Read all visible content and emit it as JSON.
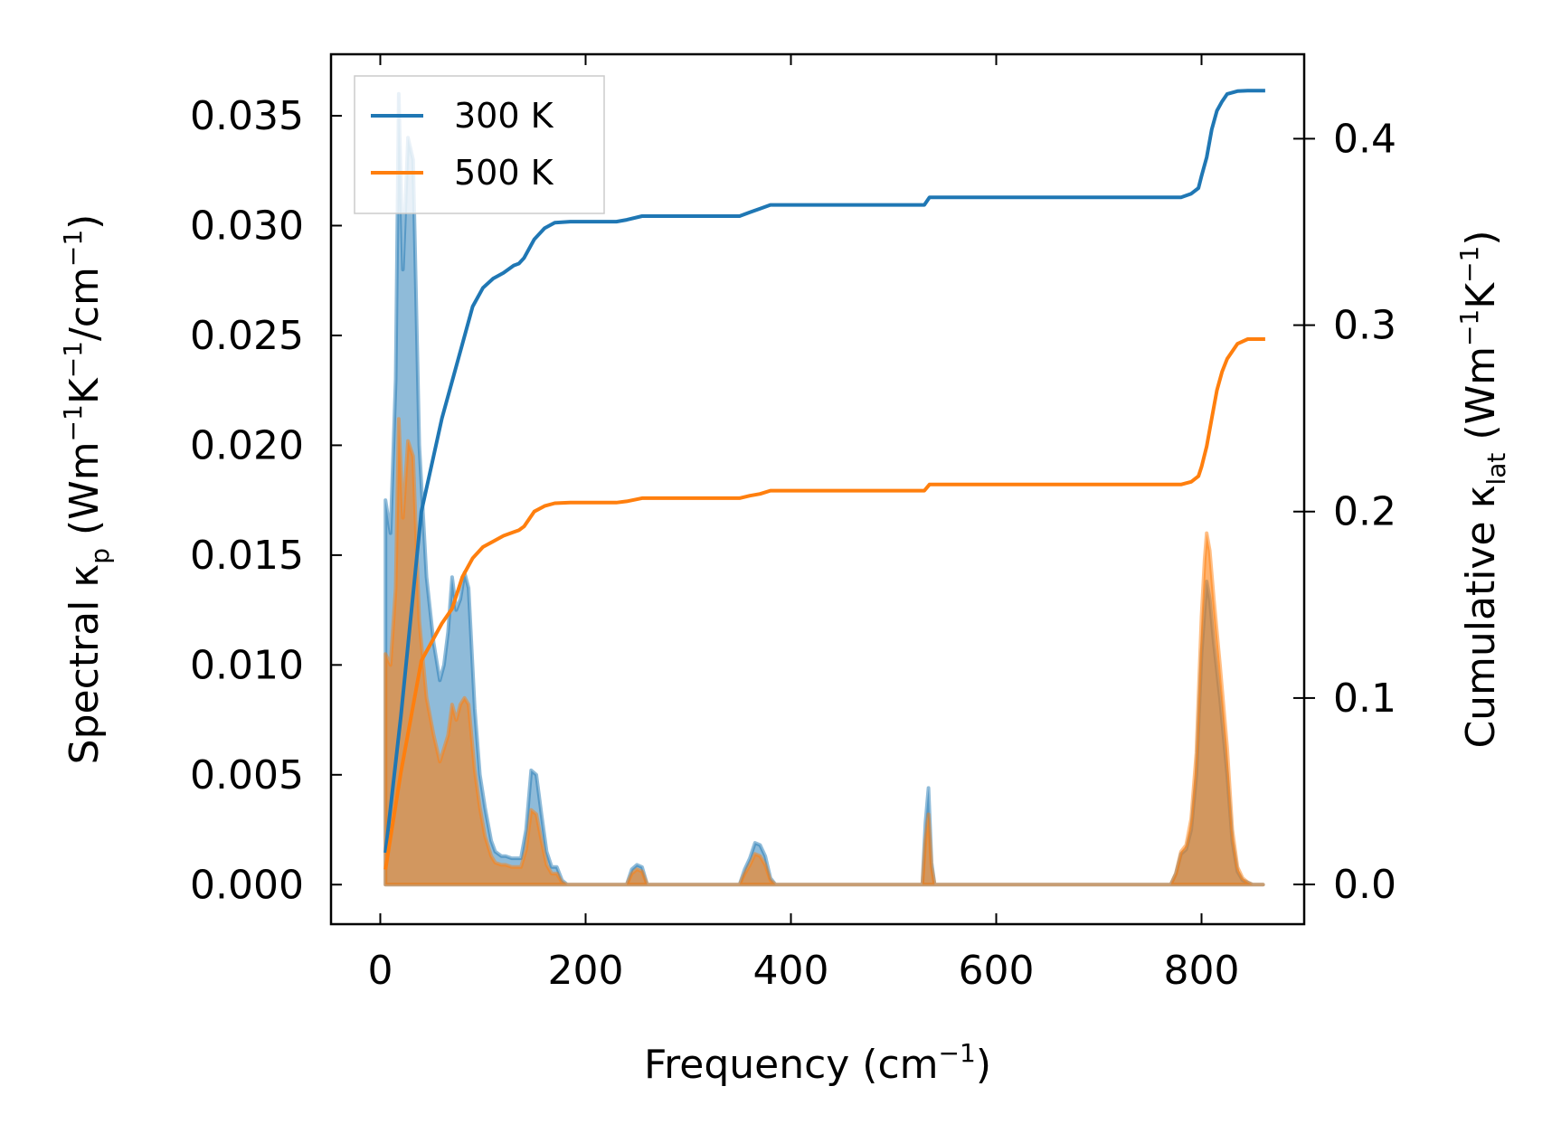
{
  "chart_data": {
    "type": "area+line (dual-axis)",
    "xlabel": {
      "main": "Frequency (cm",
      "sup": "−1",
      "end": ")"
    },
    "ylabel_left": {
      "a": "Spectral κ",
      "sub": "p",
      "b": " (Wm",
      "sup1": "−1",
      "c": "K",
      "sup2": "−1",
      "d": "/cm",
      "sup3": "−1",
      "e": ")"
    },
    "ylabel_right": {
      "a": "Cumulative κ",
      "sub": "lat",
      "b": " (Wm",
      "sup1": "−1",
      "c": "K",
      "sup2": "−1",
      "d": ")"
    },
    "xlim": [
      -48,
      900
    ],
    "ylim_left": [
      -0.0018,
      0.0378
    ],
    "ylim_right": [
      -0.0213,
      0.4453
    ],
    "xticks": [
      0,
      200,
      400,
      600,
      800
    ],
    "xtick_labels": [
      "0",
      "200",
      "400",
      "600",
      "800"
    ],
    "yticks_left": [
      0.0,
      0.005,
      0.01,
      0.015,
      0.02,
      0.025,
      0.03,
      0.035
    ],
    "ytick_labels_left": [
      "0.000",
      "0.005",
      "0.010",
      "0.015",
      "0.020",
      "0.025",
      "0.030",
      "0.035"
    ],
    "yticks_right": [
      0.0,
      0.1,
      0.2,
      0.3,
      0.4
    ],
    "ytick_labels_right": [
      "0.0",
      "0.1",
      "0.2",
      "0.3",
      "0.4"
    ],
    "legend": {
      "position": "upper left",
      "entries": [
        "300 K",
        "500 K"
      ]
    },
    "colors": {
      "300K": "#1f77b4",
      "500K": "#ff7f0e"
    },
    "series": [
      {
        "name": "300 K",
        "spectral_x": [
          5,
          10,
          15,
          18,
          22,
          27,
          32,
          38,
          45,
          52,
          58,
          62,
          66,
          70,
          74,
          78,
          82,
          86,
          92,
          97,
          102,
          108,
          112,
          118,
          122,
          128,
          133,
          137,
          142,
          147,
          152,
          157,
          162,
          167,
          172,
          177,
          182,
          187,
          192,
          197,
          240,
          245,
          250,
          255,
          260,
          350,
          355,
          360,
          365,
          370,
          375,
          380,
          385,
          525,
          528,
          531,
          534,
          537,
          540,
          770,
          775,
          780,
          785,
          790,
          795,
          800,
          803,
          805,
          808,
          812,
          818,
          825,
          830,
          835,
          840,
          845,
          850,
          860
        ],
        "spectral_y": [
          0.0175,
          0.016,
          0.023,
          0.036,
          0.028,
          0.034,
          0.033,
          0.02,
          0.014,
          0.011,
          0.0093,
          0.01,
          0.0115,
          0.014,
          0.0125,
          0.013,
          0.0142,
          0.0135,
          0.008,
          0.005,
          0.0035,
          0.002,
          0.0015,
          0.0013,
          0.0013,
          0.0012,
          0.0012,
          0.0012,
          0.0025,
          0.0052,
          0.005,
          0.0032,
          0.0015,
          0.0008,
          0.0008,
          0.0002,
          0.0,
          0.0,
          0.0,
          0.0,
          0.0,
          0.0007,
          0.0009,
          0.0008,
          0.0,
          0.0,
          0.0007,
          0.0012,
          0.0019,
          0.0018,
          0.0013,
          0.0003,
          0.0,
          0.0,
          0.0,
          0.0028,
          0.0044,
          0.001,
          0.0,
          0.0,
          0.0005,
          0.0014,
          0.0016,
          0.0025,
          0.005,
          0.0105,
          0.0125,
          0.0138,
          0.013,
          0.011,
          0.0085,
          0.005,
          0.002,
          0.0006,
          0.0002,
          0.0001,
          0.0,
          0.0
        ],
        "cumulative_x": [
          5,
          20,
          40,
          60,
          80,
          90,
          100,
          110,
          120,
          130,
          135,
          140,
          150,
          160,
          170,
          185,
          200,
          230,
          240,
          255,
          300,
          350,
          360,
          370,
          380,
          430,
          530,
          535,
          700,
          780,
          790,
          797,
          800,
          805,
          810,
          815,
          820,
          825,
          835,
          845,
          862
        ],
        "cumulative_y": [
          0.017,
          0.09,
          0.2,
          0.25,
          0.29,
          0.31,
          0.32,
          0.325,
          0.328,
          0.332,
          0.333,
          0.336,
          0.346,
          0.352,
          0.355,
          0.3555,
          0.3555,
          0.3555,
          0.3565,
          0.3585,
          0.3585,
          0.3585,
          0.3605,
          0.3625,
          0.3645,
          0.3645,
          0.3645,
          0.3685,
          0.3685,
          0.3685,
          0.3705,
          0.3735,
          0.38,
          0.39,
          0.405,
          0.415,
          0.42,
          0.424,
          0.4255,
          0.4258,
          0.4258
        ]
      },
      {
        "name": "500 K",
        "spectral_x": [
          5,
          10,
          15,
          18,
          22,
          27,
          32,
          38,
          45,
          52,
          58,
          62,
          66,
          70,
          74,
          78,
          82,
          86,
          92,
          97,
          102,
          108,
          112,
          118,
          122,
          128,
          133,
          137,
          142,
          147,
          152,
          157,
          162,
          167,
          172,
          177,
          182,
          187,
          192,
          197,
          240,
          245,
          250,
          255,
          260,
          350,
          355,
          360,
          365,
          370,
          375,
          380,
          385,
          525,
          528,
          531,
          534,
          537,
          540,
          770,
          775,
          780,
          785,
          790,
          795,
          800,
          803,
          805,
          808,
          812,
          818,
          825,
          830,
          835,
          840,
          845,
          850,
          860
        ],
        "spectral_y": [
          0.0105,
          0.01,
          0.0135,
          0.0212,
          0.0167,
          0.0202,
          0.0195,
          0.012,
          0.0085,
          0.0068,
          0.0056,
          0.0062,
          0.0068,
          0.0082,
          0.0075,
          0.0082,
          0.0085,
          0.0082,
          0.0052,
          0.0035,
          0.0022,
          0.0013,
          0.001,
          0.0009,
          0.0009,
          0.0008,
          0.0008,
          0.0008,
          0.0016,
          0.0034,
          0.0032,
          0.002,
          0.0009,
          0.0005,
          0.0005,
          0.0001,
          0.0,
          0.0,
          0.0,
          0.0,
          0.0,
          0.0005,
          0.0007,
          0.0006,
          0.0,
          0.0,
          0.0005,
          0.0009,
          0.0014,
          0.0013,
          0.0009,
          0.0002,
          0.0,
          0.0,
          0.0,
          0.002,
          0.0032,
          0.0008,
          0.0,
          0.0,
          0.0005,
          0.0015,
          0.0018,
          0.003,
          0.006,
          0.0122,
          0.0148,
          0.016,
          0.0152,
          0.013,
          0.01,
          0.0062,
          0.0025,
          0.0008,
          0.0003,
          0.0001,
          0.0,
          0.0
        ],
        "cumulative_x": [
          5,
          20,
          40,
          60,
          70,
          80,
          90,
          100,
          110,
          120,
          130,
          135,
          140,
          150,
          160,
          170,
          185,
          200,
          230,
          240,
          255,
          300,
          350,
          360,
          370,
          380,
          430,
          530,
          535,
          700,
          780,
          790,
          797,
          800,
          805,
          810,
          815,
          820,
          825,
          835,
          845,
          862
        ],
        "cumulative_y": [
          0.008,
          0.06,
          0.12,
          0.14,
          0.148,
          0.165,
          0.175,
          0.181,
          0.184,
          0.187,
          0.189,
          0.19,
          0.192,
          0.2,
          0.203,
          0.2045,
          0.2048,
          0.2048,
          0.2048,
          0.2055,
          0.2072,
          0.2072,
          0.2072,
          0.2085,
          0.2095,
          0.2112,
          0.2112,
          0.2112,
          0.2145,
          0.2145,
          0.2145,
          0.216,
          0.219,
          0.224,
          0.235,
          0.25,
          0.265,
          0.275,
          0.282,
          0.29,
          0.2925,
          0.2925
        ]
      }
    ]
  }
}
